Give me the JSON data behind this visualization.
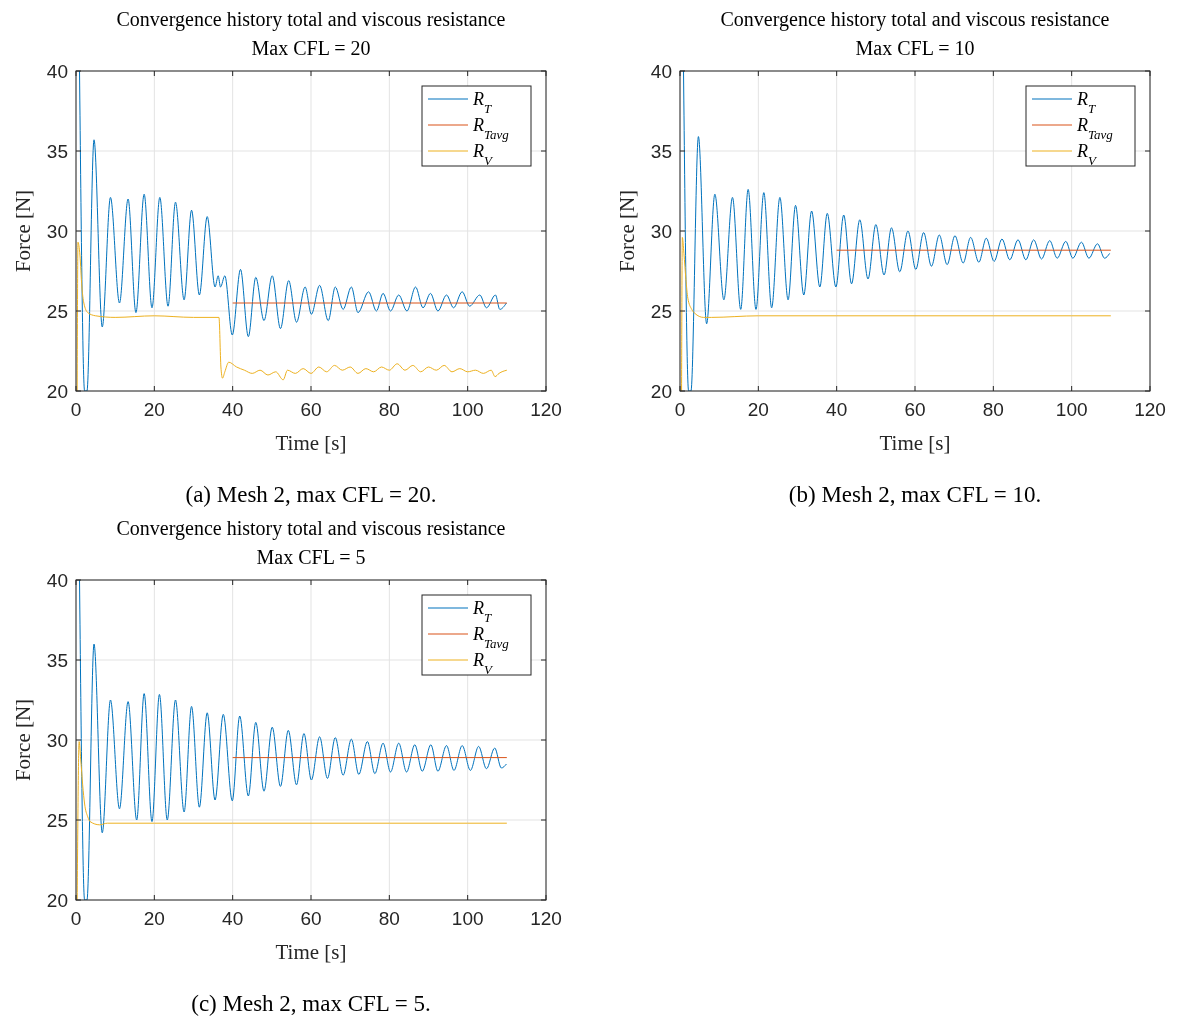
{
  "chart_data": [
    {
      "type": "line",
      "title": "Convergence history total and viscous resistance",
      "subtitle": "Max CFL = 20",
      "xlabel": "Time [s]",
      "ylabel": "Force [N]",
      "xlim": [
        0,
        120
      ],
      "xticks": [
        0,
        20,
        40,
        60,
        80,
        100,
        120
      ],
      "ylim": [
        20,
        40
      ],
      "yticks": [
        20,
        25,
        30,
        35,
        40
      ],
      "grid": true,
      "legend": "top right",
      "annotations": [
        "(a) Mesh 2, max CFL = 20."
      ],
      "series": [
        {
          "name": "R$_{T}$",
          "color": "#0072bd",
          "x": [
            0.9,
            2.2,
            2.8,
            4.6,
            6.7,
            8.8,
            11.1,
            13.3,
            15.3,
            17.4,
            19.4,
            21.4,
            23.5,
            25.4,
            27.6,
            29.5,
            31.5,
            33.5,
            35.5,
            36.3,
            36.9,
            38.0,
            39.9,
            42.0,
            44.0,
            45.9,
            48.0,
            50.1,
            52.2,
            54.3,
            56.3,
            58.5,
            60.1,
            62.2,
            64.4,
            66.2,
            68.2,
            70.3,
            72.0,
            74.7,
            76.7,
            78.4,
            80.3,
            82.4,
            84.5,
            86.7,
            88.6,
            90.5,
            92.4,
            94.6,
            96.4,
            98.6,
            100.5,
            103.1,
            104.8,
            107.1,
            108.2,
            109.9
          ],
          "values": [
            40,
            20,
            20,
            35.7,
            24.0,
            32.1,
            25.5,
            32.0,
            24.9,
            32.3,
            25.2,
            32.1,
            25.3,
            31.8,
            25.7,
            31.3,
            26.0,
            30.9,
            26.5,
            27.2,
            26.5,
            27.2,
            23.5,
            27.6,
            23.4,
            27.1,
            24.4,
            27.2,
            23.9,
            26.9,
            24.3,
            26.5,
            24.8,
            26.6,
            24.4,
            26.5,
            25.1,
            26.5,
            24.9,
            26.2,
            25.0,
            26.1,
            25.0,
            26.0,
            25.0,
            26.5,
            25.2,
            26.1,
            25.0,
            26.0,
            25.2,
            26.2,
            25.3,
            26.0,
            25.2,
            26.0,
            25.1,
            25.5
          ]
        },
        {
          "name": "R$_{Tavg}$",
          "color": "#d95319",
          "x": [
            40,
            110
          ],
          "values": [
            25.5,
            25.5
          ]
        },
        {
          "name": "R$_{V}$",
          "color": "#edb120",
          "x": [
            0.3,
            0.5,
            1,
            1.5,
            2,
            3,
            5,
            10,
            20,
            30,
            36.5,
            37,
            37.4,
            38,
            39,
            41,
            43,
            45,
            47,
            49,
            51,
            52.9,
            54,
            56,
            58,
            60,
            62,
            64,
            66,
            68,
            70,
            72,
            74,
            76,
            78,
            80,
            82,
            84,
            86,
            88,
            90,
            92,
            94,
            96,
            98,
            100,
            102,
            104,
            106,
            107,
            108,
            110
          ],
          "values": [
            20,
            29.3,
            28.5,
            26.5,
            25.5,
            24.9,
            24.7,
            24.6,
            24.7,
            24.6,
            24.6,
            21.5,
            20.8,
            21.2,
            21.8,
            21.5,
            21.3,
            21.1,
            21.3,
            21.0,
            21.2,
            20.7,
            21.3,
            21.1,
            21.4,
            21.1,
            21.5,
            21.2,
            21.6,
            21.3,
            21.5,
            21.1,
            21.4,
            21.2,
            21.5,
            21.3,
            21.7,
            21.3,
            21.6,
            21.2,
            21.5,
            21.3,
            21.6,
            21.2,
            21.4,
            21.2,
            21.3,
            21.1,
            21.3,
            20.9,
            21.1,
            21.3
          ]
        }
      ]
    },
    {
      "type": "line",
      "title": "Convergence history total and viscous resistance",
      "subtitle": "Max CFL = 10",
      "xlabel": "Time [s]",
      "ylabel": "Force [N]",
      "xlim": [
        0,
        120
      ],
      "xticks": [
        0,
        20,
        40,
        60,
        80,
        100,
        120
      ],
      "ylim": [
        20,
        40
      ],
      "yticks": [
        20,
        25,
        30,
        35,
        40
      ],
      "grid": true,
      "legend": "top right",
      "annotations": [
        "(b) Mesh 2, max CFL = 10."
      ],
      "series": [
        {
          "name": "R$_{T}$",
          "color": "#0072bd",
          "x": [
            0.9,
            2.2,
            2.8,
            4.7,
            6.8,
            8.9,
            11.2,
            13.4,
            15.5,
            17.4,
            19.4,
            21.4,
            23.4,
            25.5,
            27.6,
            29.5,
            31.6,
            33.6,
            35.7,
            37.6,
            39.8,
            41.8,
            43.8,
            45.9,
            48.0,
            50.0,
            52.1,
            54.0,
            56.1,
            58.2,
            60.2,
            62.2,
            64.2,
            66.2,
            68.2,
            70.2,
            72.3,
            74.2,
            76.3,
            78.2,
            80.2,
            82.2,
            84.2,
            86.3,
            88.3,
            90.3,
            92.3,
            94.4,
            96.3,
            98.5,
            100.3,
            102.5,
            104.4,
            106.6,
            108.4,
            109.7
          ],
          "values": [
            40,
            20,
            20,
            35.9,
            24.2,
            32.3,
            25.7,
            32.1,
            25.1,
            32.6,
            25.1,
            32.4,
            25.2,
            32.1,
            25.7,
            31.6,
            26.0,
            31.25,
            26.5,
            31.1,
            26.5,
            31.0,
            26.7,
            30.7,
            27.0,
            30.4,
            27.25,
            30.2,
            27.45,
            30.0,
            27.6,
            29.9,
            27.8,
            29.75,
            27.9,
            29.7,
            28.0,
            29.6,
            28.05,
            29.55,
            28.1,
            29.5,
            28.2,
            29.45,
            28.2,
            29.45,
            28.25,
            29.4,
            28.3,
            29.35,
            28.3,
            29.3,
            28.3,
            29.2,
            28.3,
            28.6
          ]
        },
        {
          "name": "R$_{Tavg}$",
          "color": "#d95319",
          "x": [
            40,
            110
          ],
          "values": [
            28.8,
            28.8
          ]
        },
        {
          "name": "R$_{V}$",
          "color": "#edb120",
          "x": [
            0.4,
            0.6,
            1,
            1.5,
            2,
            3,
            3.8,
            6,
            8,
            20,
            40,
            60,
            80,
            100,
            110
          ],
          "values": [
            20,
            29.6,
            28.6,
            27.0,
            25.8,
            25.1,
            24.85,
            24.6,
            24.6,
            24.7,
            24.7,
            24.7,
            24.7,
            24.7,
            24.7
          ]
        }
      ]
    },
    {
      "type": "line",
      "title": "Convergence history total and viscous resistance",
      "subtitle": "Max CFL = 5",
      "xlabel": "Time [s]",
      "ylabel": "Force [N]",
      "xlim": [
        0,
        120
      ],
      "xticks": [
        0,
        20,
        40,
        60,
        80,
        100,
        120
      ],
      "ylim": [
        20,
        40
      ],
      "yticks": [
        20,
        25,
        30,
        35,
        40
      ],
      "grid": true,
      "legend": "top right",
      "annotations": [
        "(c) Mesh 2, max CFL = 5."
      ],
      "series": [
        {
          "name": "R$_{T}$",
          "color": "#0072bd",
          "x": [
            0.9,
            2.2,
            2.8,
            4.6,
            6.7,
            8.8,
            11.1,
            13.3,
            15.5,
            17.4,
            19.4,
            21.3,
            23.3,
            25.4,
            27.6,
            29.5,
            31.5,
            33.5,
            35.5,
            37.6,
            39.9,
            41.8,
            44.0,
            45.9,
            48.0,
            50.1,
            52.2,
            54.2,
            56.3,
            58.2,
            60.1,
            62.2,
            64.2,
            66.2,
            68.2,
            70.3,
            72.2,
            74.4,
            76.3,
            78.4,
            80.3,
            82.4,
            84.4,
            86.5,
            88.4,
            90.6,
            92.4,
            94.6,
            96.5,
            98.6,
            100.7,
            102.8,
            104.8,
            106.9,
            108.6,
            109.9
          ],
          "values": [
            40,
            20,
            20,
            36.0,
            24.2,
            32.5,
            25.7,
            32.4,
            25.0,
            32.9,
            24.9,
            32.85,
            25.0,
            32.5,
            25.5,
            32.1,
            25.8,
            31.7,
            26.25,
            31.6,
            26.2,
            31.5,
            26.5,
            31.1,
            26.8,
            30.8,
            27.1,
            30.6,
            27.2,
            30.4,
            27.5,
            30.2,
            27.6,
            30.15,
            27.8,
            30.05,
            27.85,
            29.9,
            27.9,
            29.8,
            28.0,
            29.8,
            28.0,
            29.7,
            28.05,
            29.7,
            28.05,
            29.65,
            28.1,
            29.65,
            28.1,
            29.6,
            28.2,
            29.5,
            28.25,
            28.5
          ]
        },
        {
          "name": "R$_{Tavg}$",
          "color": "#d95319",
          "x": [
            40,
            110
          ],
          "values": [
            28.9,
            28.9
          ]
        },
        {
          "name": "R$_{V}$",
          "color": "#edb120",
          "x": [
            0.3,
            0.8,
            1.2,
            1.7,
            2.2,
            3,
            3.6,
            6,
            8,
            20,
            40,
            60,
            80,
            100,
            110
          ],
          "values": [
            20,
            29.9,
            28.8,
            27.2,
            26.0,
            25.2,
            24.9,
            24.7,
            24.8,
            24.8,
            24.8,
            24.8,
            24.8,
            24.8,
            24.8
          ]
        }
      ]
    }
  ]
}
